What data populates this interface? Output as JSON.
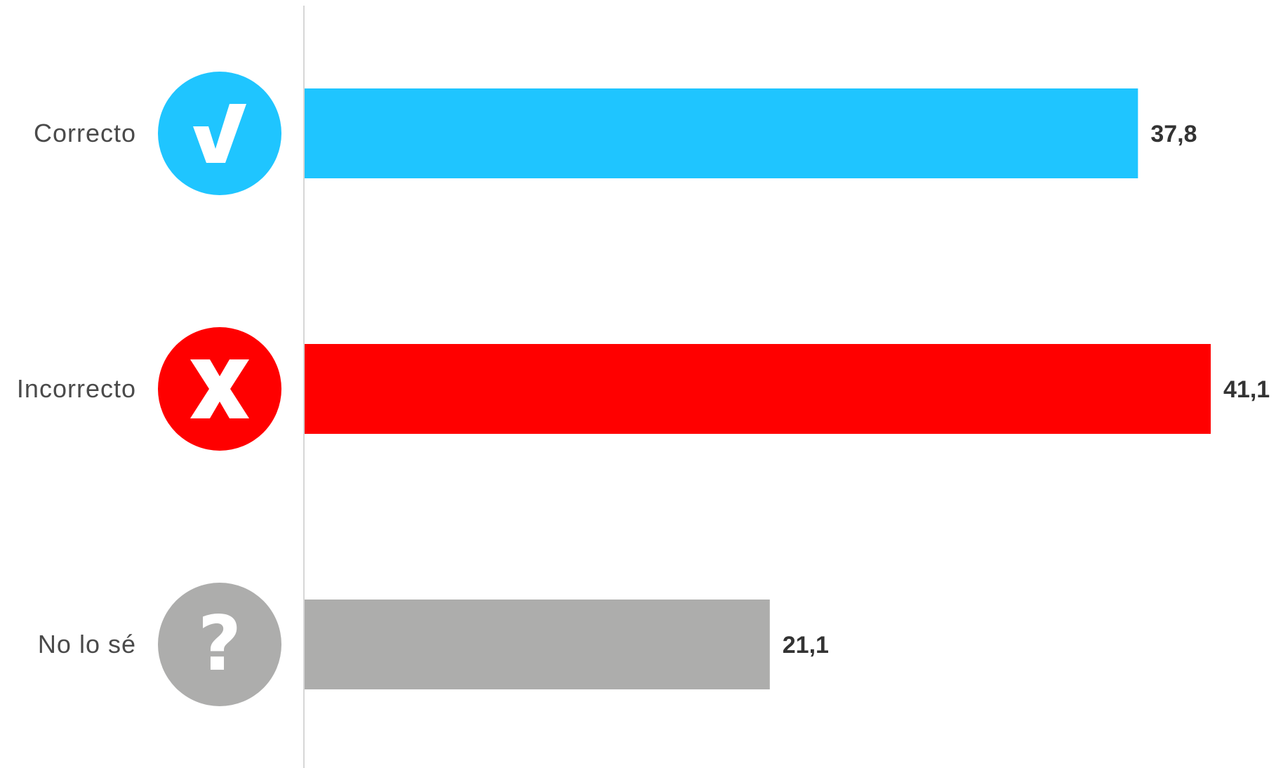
{
  "chart_data": {
    "type": "bar",
    "orientation": "horizontal",
    "categories": [
      "Correcto",
      "Incorrecto",
      "No lo sé"
    ],
    "values": [
      37.8,
      41.1,
      21.1
    ],
    "value_labels": [
      "37,8",
      "41,1",
      "21,1"
    ],
    "colors": [
      "#1fc5ff",
      "#ff0000",
      "#adadac"
    ],
    "icons": [
      "check-icon",
      "x-mark-icon",
      "question-mark-icon"
    ],
    "title": "",
    "xlabel": "",
    "ylabel": "",
    "xlim": [
      0,
      41.1
    ],
    "grid": false,
    "legend": "none"
  }
}
